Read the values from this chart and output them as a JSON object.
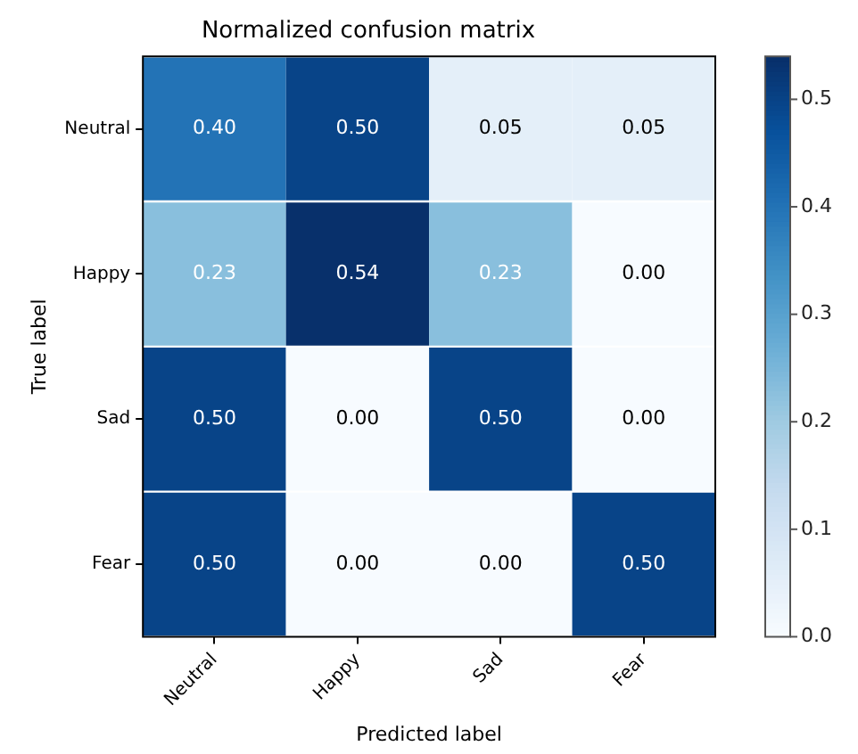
{
  "chart_data": {
    "type": "heatmap",
    "title": "Normalized confusion matrix",
    "xlabel": "Predicted label",
    "ylabel": "True label",
    "categories": [
      "Neutral",
      "Happy",
      "Sad",
      "Fear"
    ],
    "y_categories": [
      "Neutral",
      "Happy",
      "Sad",
      "Fear"
    ],
    "cells": [
      [
        0.4,
        0.5,
        0.05,
        0.05
      ],
      [
        0.23,
        0.54,
        0.23,
        0.0
      ],
      [
        0.5,
        0.0,
        0.5,
        0.0
      ],
      [
        0.5,
        0.0,
        0.0,
        0.5
      ]
    ],
    "cell_labels": [
      [
        "0.40",
        "0.50",
        "0.05",
        "0.05"
      ],
      [
        "0.23",
        "0.54",
        "0.23",
        "0.00"
      ],
      [
        "0.50",
        "0.00",
        "0.50",
        "0.00"
      ],
      [
        "0.50",
        "0.00",
        "0.00",
        "0.50"
      ]
    ],
    "clim": [
      0,
      0.54
    ],
    "cticks": [
      {
        "value": 0,
        "label": "0.0"
      },
      {
        "value": 0.1,
        "label": "0.1"
      },
      {
        "value": 0.2,
        "label": "0.2"
      },
      {
        "value": 0.3,
        "label": "0.3"
      },
      {
        "value": 0.4,
        "label": "0.4"
      },
      {
        "value": 0.5,
        "label": "0.5"
      }
    ]
  }
}
